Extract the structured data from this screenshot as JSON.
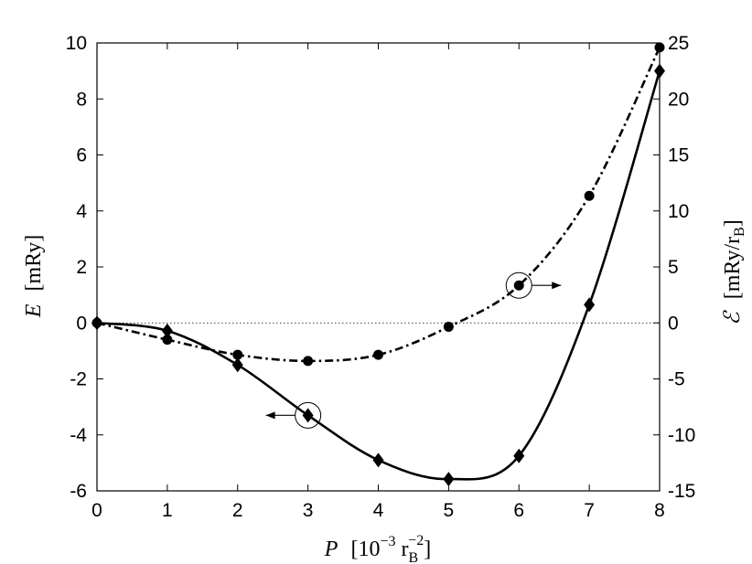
{
  "chart_data": {
    "type": "line",
    "xlabel": {
      "symbol": "P",
      "text": "[10",
      "exp": "−3",
      "unit": " r",
      "unit_sub": "B",
      "unit_sup": "−2",
      "close": "]"
    },
    "ylabel_left": {
      "symbol": "E",
      "text": "[mRy]"
    },
    "ylabel_right": {
      "symbol": "ℰ",
      "text": "[mRy/r",
      "sub": "B",
      "close": "]"
    },
    "xlim": [
      0,
      8
    ],
    "ylim_left": [
      -6,
      10
    ],
    "ylim_right": [
      -15,
      25
    ],
    "x_ticks": [
      "0",
      "1",
      "2",
      "3",
      "4",
      "5",
      "6",
      "7",
      "8"
    ],
    "y_left_ticks": [
      "-6",
      "-4",
      "-2",
      "0",
      "2",
      "4",
      "6",
      "8",
      "10"
    ],
    "y_right_ticks": [
      "-15",
      "-10",
      "-5",
      "0",
      "5",
      "10",
      "15",
      "20",
      "25"
    ],
    "zero_reference_line": true,
    "grid": false,
    "series": [
      {
        "axis": "left",
        "line_style": "solid",
        "marker": "diamond",
        "x": [
          0,
          1,
          2,
          3,
          4,
          5,
          6,
          7,
          8
        ],
        "y": [
          0,
          -0.28,
          -1.5,
          -3.3,
          -4.9,
          -5.58,
          -4.75,
          0.65,
          9.0
        ]
      },
      {
        "axis": "right",
        "line_style": "dash-dot",
        "marker": "circle",
        "x": [
          0,
          1,
          2,
          3,
          4,
          5,
          6,
          7,
          8
        ],
        "y": [
          0,
          -1.5,
          -2.85,
          -3.4,
          -2.85,
          -0.35,
          3.35,
          11.35,
          24.6
        ]
      }
    ],
    "annotations": [
      {
        "series": 0,
        "x": 3,
        "y": -3.3,
        "arrow": "left"
      },
      {
        "series": 1,
        "x": 6,
        "y": 3.35,
        "arrow": "right"
      }
    ]
  }
}
